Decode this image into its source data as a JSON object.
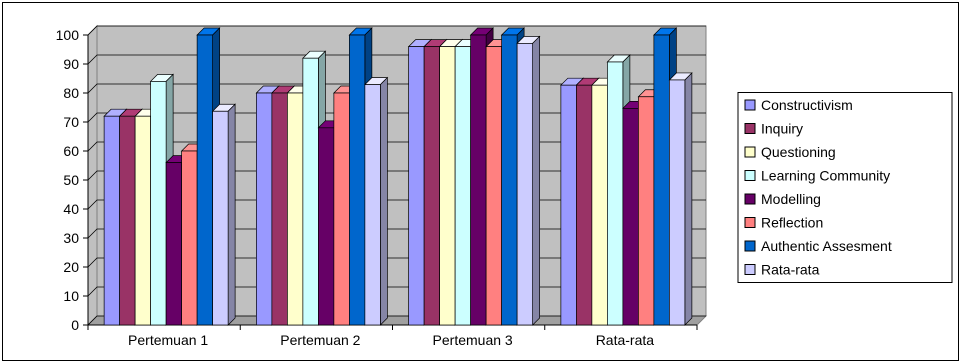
{
  "chart_data": {
    "type": "bar",
    "title": "",
    "xlabel": "",
    "ylabel": "",
    "categories": [
      "Pertemuan 1",
      "Pertemuan 2",
      "Pertemuan 3",
      "Rata-rata"
    ],
    "ylim": [
      0,
      100
    ],
    "yticks": [
      "0",
      "10",
      "20",
      "30",
      "40",
      "50",
      "60",
      "70",
      "80",
      "90",
      "100"
    ],
    "grid": true,
    "legend_position": "right",
    "series": [
      {
        "name": "Constructivism",
        "values": [
          72,
          80,
          96,
          82.7
        ],
        "color": "#9999FF"
      },
      {
        "name": "Inquiry",
        "values": [
          72,
          80,
          96,
          82.7
        ],
        "color": "#993366"
      },
      {
        "name": "Questioning",
        "values": [
          72,
          80,
          96,
          82.7
        ],
        "color": "#FFFFCC"
      },
      {
        "name": "Learning Community",
        "values": [
          84,
          92,
          96,
          90.7
        ],
        "color": "#CCFFFF"
      },
      {
        "name": "Modelling",
        "values": [
          56,
          68,
          100,
          74.7
        ],
        "color": "#660066"
      },
      {
        "name": "Reflection",
        "values": [
          60,
          80,
          96,
          78.7
        ],
        "color": "#FF8080"
      },
      {
        "name": "Authentic Assesment",
        "values": [
          100,
          100,
          100,
          100
        ],
        "color": "#0066CC"
      },
      {
        "name": "Rata-rata",
        "values": [
          73.7,
          82.9,
          97.1,
          84.5
        ],
        "color": "#CCCCFF"
      }
    ]
  }
}
